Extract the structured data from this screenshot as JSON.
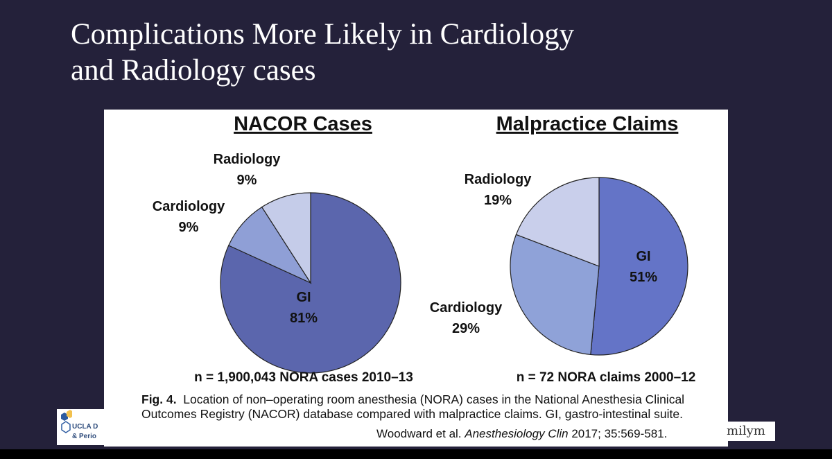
{
  "slide": {
    "title_line1": "Complications More Likely in Cardiology",
    "title_line2": "and Radiology cases"
  },
  "chart_data": [
    {
      "type": "pie",
      "title": "NACOR Cases",
      "slices": [
        {
          "label": "GI",
          "value": 81,
          "display": "81%",
          "color": "#5b66ad"
        },
        {
          "label": "Cardiology",
          "value": 9,
          "display": "9%",
          "color": "#8f9fd6"
        },
        {
          "label": "Radiology",
          "value": 9,
          "display": "9%",
          "color": "#c5cce9"
        }
      ],
      "footnote": "n = 1,900,043 NORA cases 2010–13"
    },
    {
      "type": "pie",
      "title": "Malpractice Claims",
      "slices": [
        {
          "label": "GI",
          "value": 51,
          "display": "51%",
          "color": "#6474c7"
        },
        {
          "label": "Cardiology",
          "value": 29,
          "display": "29%",
          "color": "#8fa2d8"
        },
        {
          "label": "Radiology",
          "value": 19,
          "display": "19%",
          "color": "#c9cfeb"
        }
      ],
      "footnote": "n = 72 NORA claims 2000–12"
    }
  ],
  "caption": {
    "fig_number": "Fig. 4.",
    "text": "Location of non–operating room anesthesia (NORA) cases in the National Anesthesia Clinical Outcomes Registry (NACOR) database compared with malpractice claims. GI, gastro-intestinal suite."
  },
  "citation": {
    "authors": "Woodward et al.",
    "journal": "Anesthesiology Clin",
    "details": "2017; 35:569-581."
  },
  "logo": {
    "line1": "UCLA D",
    "line2": "& Perio"
  },
  "watermark": "milym"
}
